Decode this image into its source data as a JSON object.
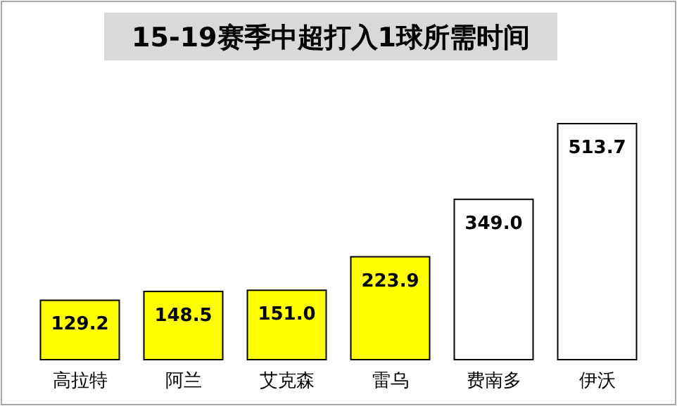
{
  "chart_data": {
    "type": "bar",
    "title": "15-19赛季中超打入1球所需时间",
    "categories": [
      "高拉特",
      "阿兰",
      "艾克森",
      "雷乌",
      "费南多",
      "伊沃"
    ],
    "values": [
      129.2,
      148.5,
      151.0,
      223.9,
      349.0,
      513.7
    ],
    "colors": [
      "#ffff00",
      "#ffff00",
      "#ffff00",
      "#ffff00",
      "#ffffff",
      "#ffffff"
    ],
    "value_labels": [
      "129.2",
      "148.5",
      "151.0",
      "223.9",
      "349.0",
      "513.7"
    ]
  }
}
